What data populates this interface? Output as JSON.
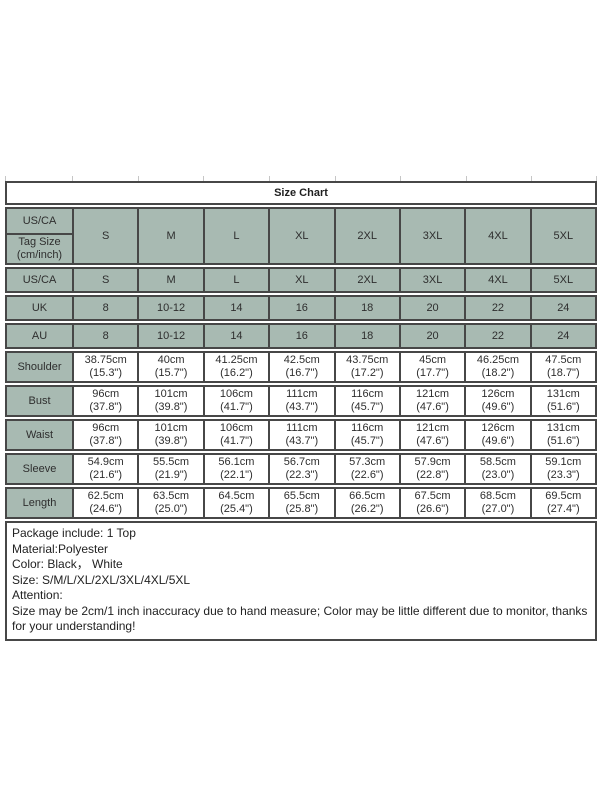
{
  "title": "Size Chart",
  "colors": {
    "cell_background": "#a8bab2",
    "border": "#474747",
    "text": "#2e2e2e"
  },
  "header": {
    "corner_top": "US/CA",
    "corner_bottom_line1": "Tag Size",
    "corner_bottom_line2": "(cm/inch)",
    "sizes": [
      "S",
      "M",
      "L",
      "XL",
      "2XL",
      "3XL",
      "4XL",
      "5XL"
    ]
  },
  "size_rows": [
    {
      "label": "US/CA",
      "values": [
        "S",
        "M",
        "L",
        "XL",
        "2XL",
        "3XL",
        "4XL",
        "5XL"
      ]
    },
    {
      "label": "UK",
      "values": [
        "8",
        "10-12",
        "14",
        "16",
        "18",
        "20",
        "22",
        "24"
      ]
    },
    {
      "label": "AU",
      "values": [
        "8",
        "10-12",
        "14",
        "16",
        "18",
        "20",
        "22",
        "24"
      ]
    }
  ],
  "measurement_rows": [
    {
      "label": "Shoulder",
      "cm": [
        "38.75cm",
        "40cm",
        "41.25cm",
        "42.5cm",
        "43.75cm",
        "45cm",
        "46.25cm",
        "47.5cm"
      ],
      "inch": [
        "(15.3\")",
        "(15.7\")",
        "(16.2\")",
        "(16.7\")",
        "(17.2\")",
        "(17.7\")",
        "(18.2\")",
        "(18.7\")"
      ]
    },
    {
      "label": "Bust",
      "cm": [
        "96cm",
        "101cm",
        "106cm",
        "111cm",
        "116cm",
        "121cm",
        "126cm",
        "131cm"
      ],
      "inch": [
        "(37.8\")",
        "(39.8\")",
        "(41.7\")",
        "(43.7\")",
        "(45.7\")",
        "(47.6\")",
        "(49.6\")",
        "(51.6\")"
      ]
    },
    {
      "label": "Waist",
      "cm": [
        "96cm",
        "101cm",
        "106cm",
        "111cm",
        "116cm",
        "121cm",
        "126cm",
        "131cm"
      ],
      "inch": [
        "(37.8\")",
        "(39.8\")",
        "(41.7\")",
        "(43.7\")",
        "(45.7\")",
        "(47.6\")",
        "(49.6\")",
        "(51.6\")"
      ]
    },
    {
      "label": "Sleeve",
      "cm": [
        "54.9cm",
        "55.5cm",
        "56.1cm",
        "56.7cm",
        "57.3cm",
        "57.9cm",
        "58.5cm",
        "59.1cm"
      ],
      "inch": [
        "(21.6\")",
        "(21.9\")",
        "(22.1\")",
        "(22.3\")",
        "(22.6\")",
        "(22.8\")",
        "(23.0\")",
        "(23.3\")"
      ]
    },
    {
      "label": "Length",
      "cm": [
        "62.5cm",
        "63.5cm",
        "64.5cm",
        "65.5cm",
        "66.5cm",
        "67.5cm",
        "68.5cm",
        "69.5cm"
      ],
      "inch": [
        "(24.6\")",
        "(25.0\")",
        "(25.4\")",
        "(25.8\")",
        "(26.2\")",
        "(26.6\")",
        "(27.0\")",
        "(27.4\")"
      ]
    }
  ],
  "footer": {
    "lines": [
      "Package include: 1 Top",
      "Material:Polyester",
      "Color: Black， White",
      "Size: S/M/L/XL/2XL/3XL/4XL/5XL",
      "Attention:",
      "Size may be 2cm/1 inch inaccuracy due to hand measure; Color may be little different due to monitor, thanks for your understanding!"
    ]
  }
}
